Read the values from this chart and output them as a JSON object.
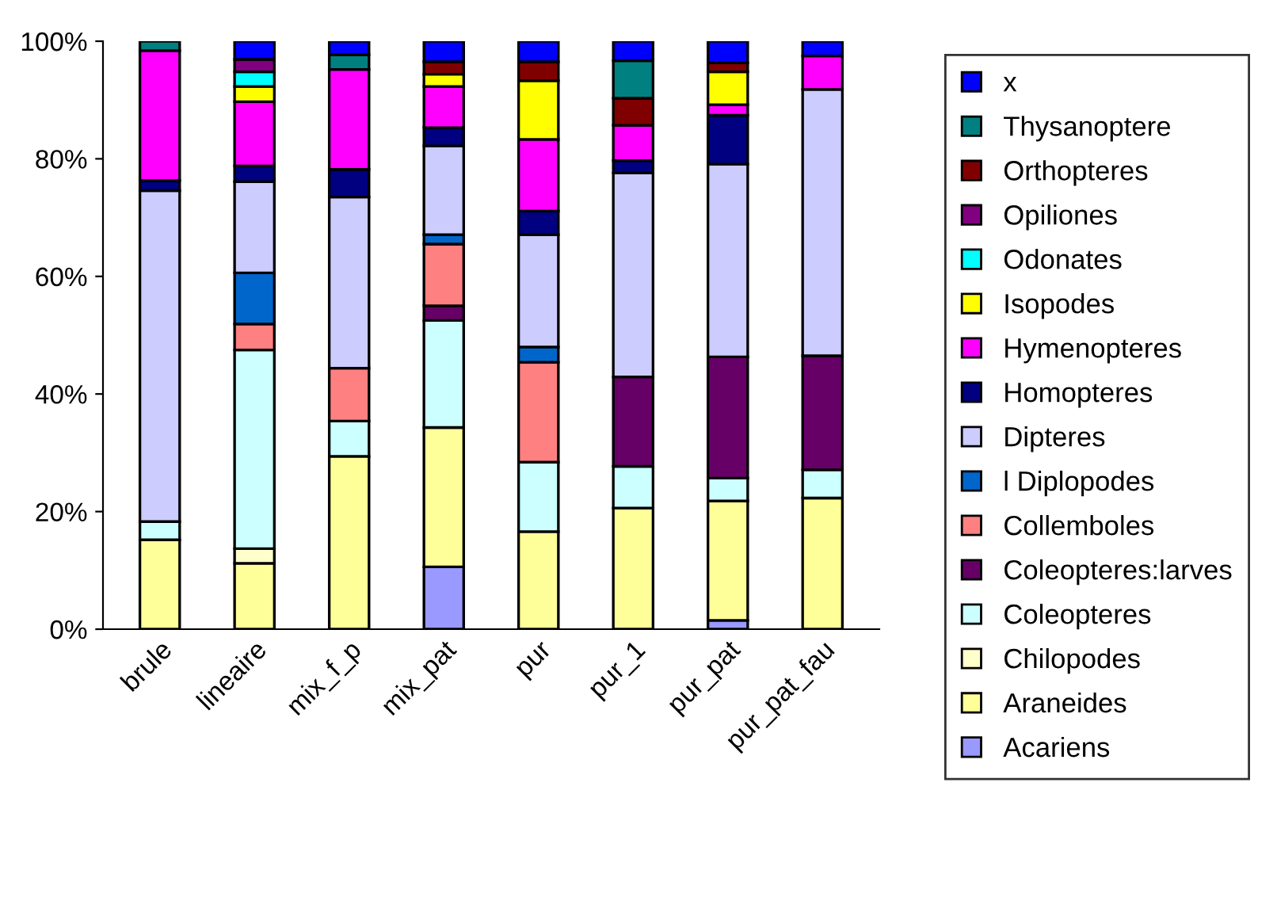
{
  "chart_data": {
    "type": "bar",
    "stacked": true,
    "categories": [
      "brule",
      "lineaire",
      "mix_f_p",
      "mix_pat",
      "pur",
      "pur_1",
      "pur_pat",
      "pur_pat_fau"
    ],
    "series": [
      {
        "name": "Acariens",
        "color": "#9999ff",
        "values": [
          null,
          null,
          null,
          10.6,
          null,
          null,
          1.5,
          null
        ]
      },
      {
        "name": "Araneides",
        "color": "#ffff99",
        "values": [
          15.2,
          11.2,
          29.4,
          23.7,
          16.6,
          20.6,
          20.3,
          22.3
        ]
      },
      {
        "name": "Chilopodes",
        "color": "#ffffcc",
        "values": [
          null,
          2.5,
          null,
          null,
          null,
          null,
          null,
          null
        ]
      },
      {
        "name": "Coleopteres",
        "color": "#ccffff",
        "values": [
          3.1,
          33.8,
          6.0,
          18.2,
          11.8,
          7.1,
          3.9,
          4.8
        ]
      },
      {
        "name": "Coleopteres:larves",
        "color": "#660066",
        "values": [
          null,
          null,
          null,
          2.5,
          null,
          15.2,
          20.6,
          19.4
        ]
      },
      {
        "name": "Collemboles",
        "color": "#ff8080",
        "values": [
          null,
          4.4,
          9.0,
          10.5,
          17.0,
          null,
          null,
          null
        ]
      },
      {
        "name": "l Diplopodes",
        "color": "#0066cc",
        "values": [
          null,
          8.7,
          null,
          1.6,
          2.6,
          null,
          null,
          null
        ]
      },
      {
        "name": "Dipteres",
        "color": "#ccccff",
        "values": [
          56.3,
          15.5,
          29.1,
          15.1,
          19.1,
          34.7,
          32.8,
          45.3
        ]
      },
      {
        "name": "Homopteres",
        "color": "#000080",
        "values": [
          1.7,
          2.7,
          4.7,
          3.1,
          4.0,
          2.1,
          8.3,
          null
        ]
      },
      {
        "name": "Hymenopteres",
        "color": "#ff00ff",
        "values": [
          22.1,
          10.9,
          17.0,
          7.0,
          12.2,
          6.0,
          1.8,
          5.7
        ]
      },
      {
        "name": "Isopodes",
        "color": "#ffff00",
        "values": [
          null,
          2.6,
          null,
          2.1,
          10.0,
          null,
          5.6,
          null
        ]
      },
      {
        "name": "Odonates",
        "color": "#00ffff",
        "values": [
          null,
          2.5,
          null,
          null,
          null,
          null,
          null,
          null
        ]
      },
      {
        "name": "Opiliones",
        "color": "#800080",
        "values": [
          null,
          2.1,
          null,
          null,
          null,
          null,
          null,
          null
        ]
      },
      {
        "name": "Orthopteres",
        "color": "#800000",
        "values": [
          null,
          null,
          null,
          2.1,
          3.2,
          4.6,
          1.5,
          null
        ]
      },
      {
        "name": "Thysanoptere",
        "color": "#008080",
        "values": [
          1.6,
          null,
          2.5,
          null,
          null,
          6.4,
          null,
          null
        ]
      },
      {
        "name": "x",
        "color": "#0000ff",
        "values": [
          null,
          3.1,
          2.3,
          3.5,
          3.5,
          3.3,
          3.7,
          2.5
        ]
      }
    ],
    "ylim": [
      0,
      100
    ],
    "yticks": [
      {
        "value": 0,
        "label": "0%"
      },
      {
        "value": 20,
        "label": "20%"
      },
      {
        "value": 40,
        "label": "40%"
      },
      {
        "value": 60,
        "label": "60%"
      },
      {
        "value": 80,
        "label": "80%"
      },
      {
        "value": 100,
        "label": "100%"
      }
    ],
    "grid": false,
    "legend": "right"
  }
}
